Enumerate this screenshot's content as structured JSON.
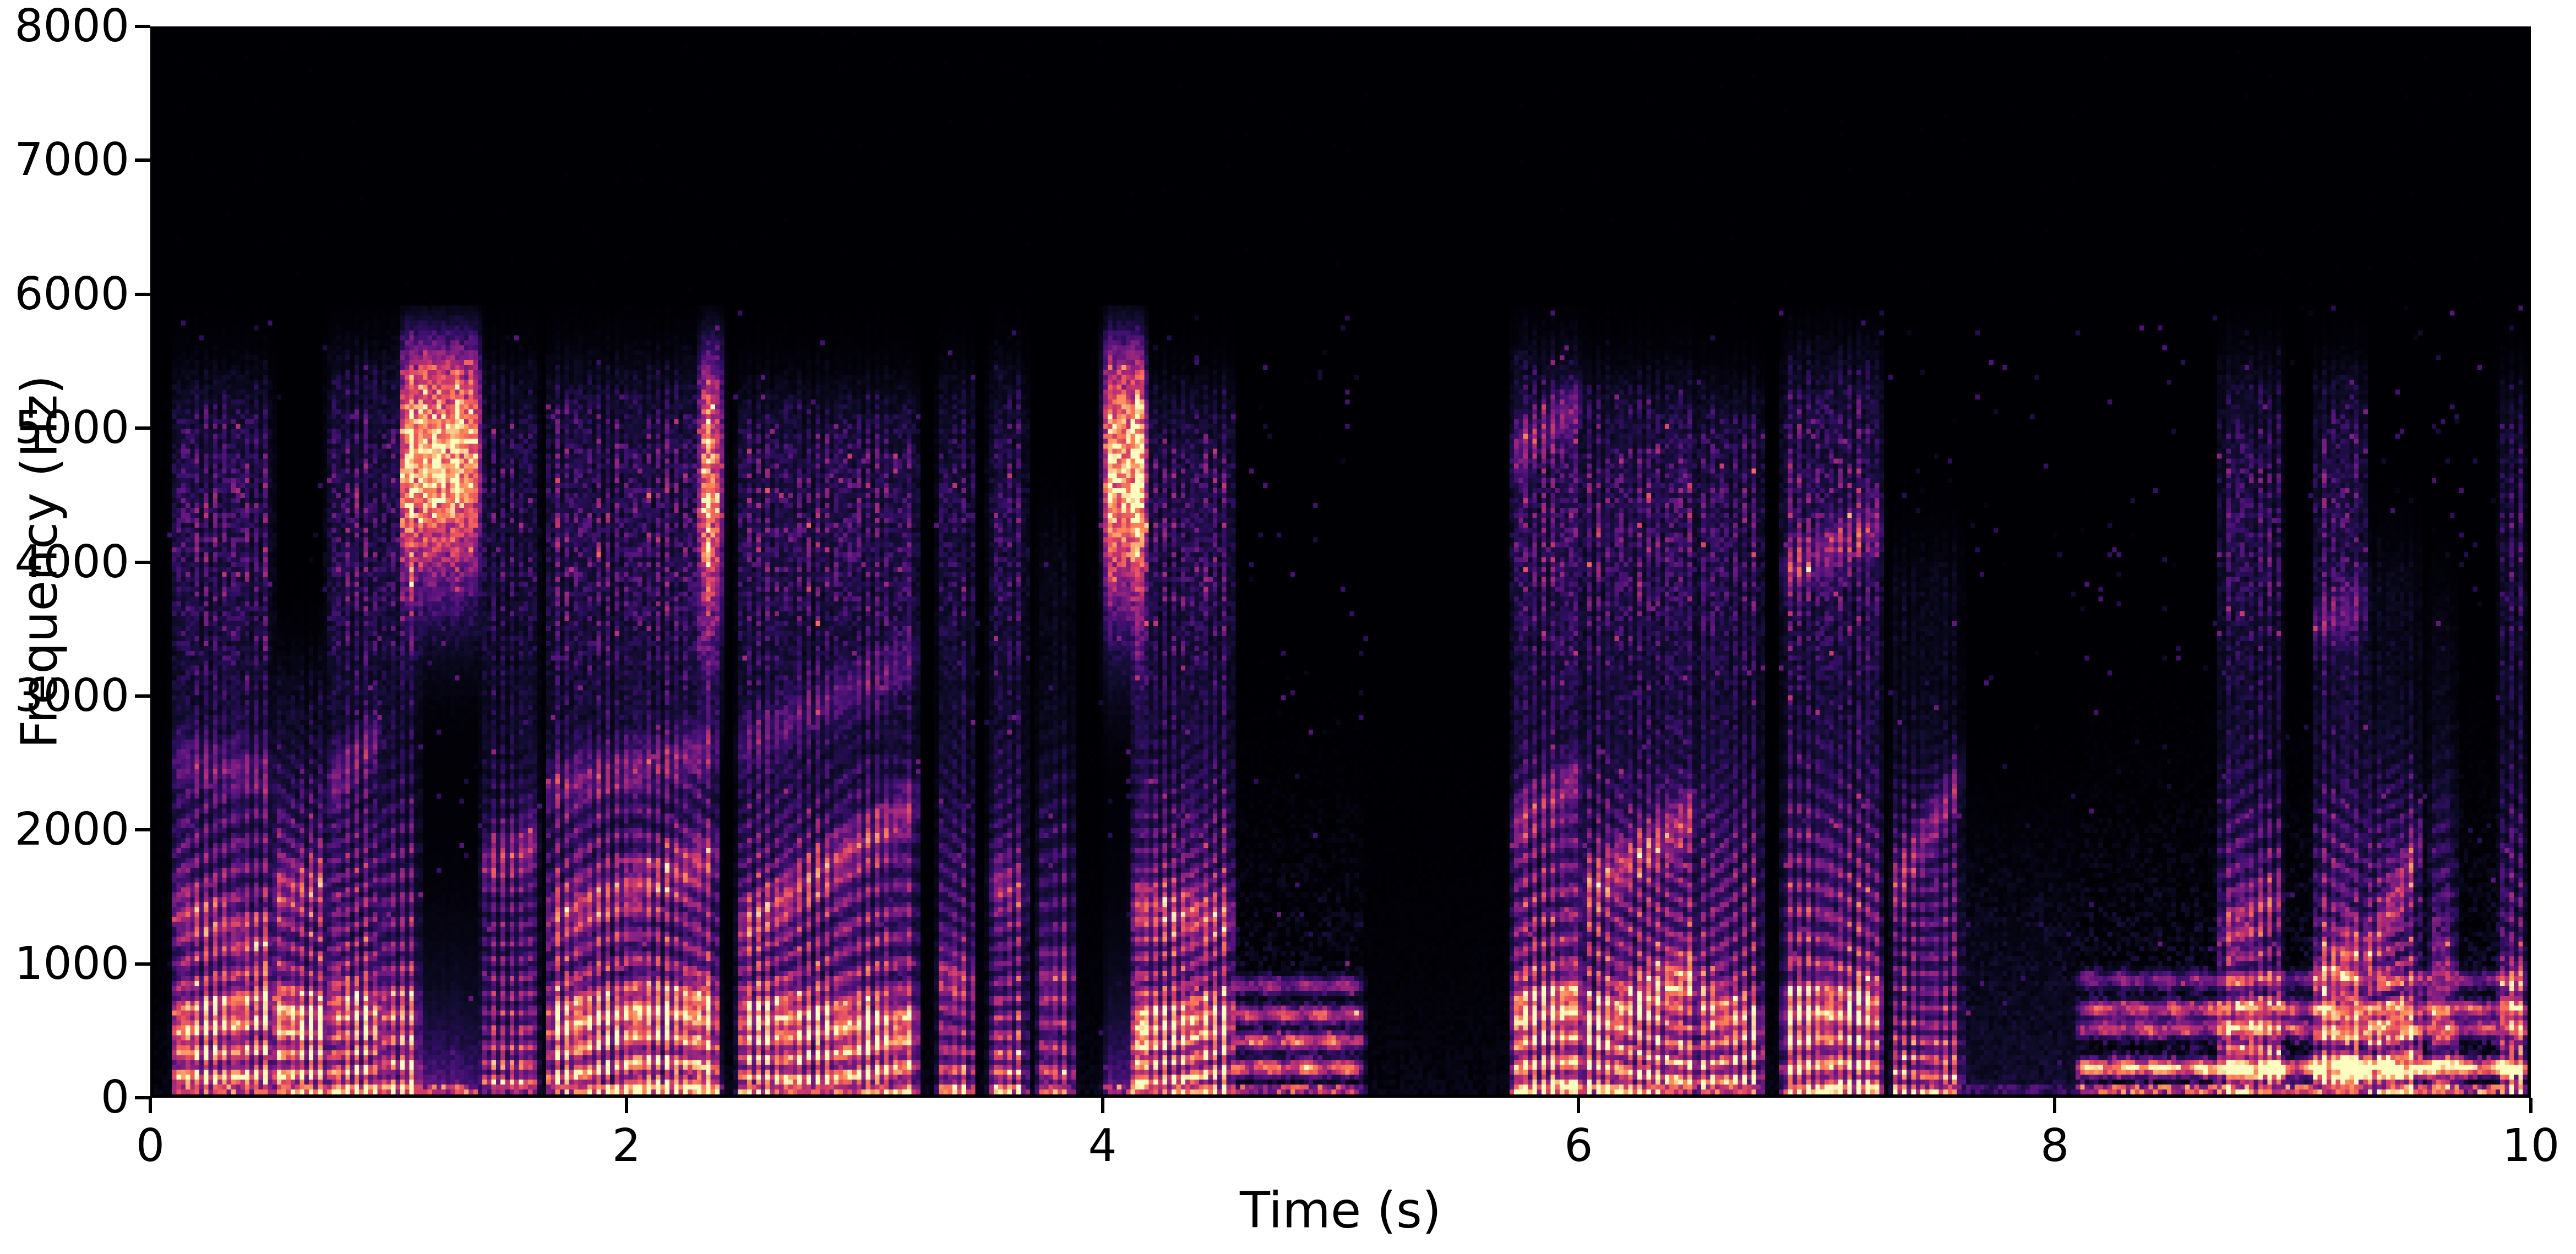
{
  "chart_data": {
    "type": "heatmap",
    "subtype": "spectrogram",
    "xlabel": "Time (s)",
    "ylabel": "Frequency (Hz)",
    "xlim": [
      0,
      10
    ],
    "ylim": [
      0,
      8000
    ],
    "xticks": [
      {
        "value": 0,
        "label": "0"
      },
      {
        "value": 2,
        "label": "2"
      },
      {
        "value": 4,
        "label": "4"
      },
      {
        "value": 6,
        "label": "6"
      },
      {
        "value": 8,
        "label": "8"
      },
      {
        "value": 10,
        "label": "10"
      }
    ],
    "yticks": [
      {
        "value": 0,
        "label": "0"
      },
      {
        "value": 1000,
        "label": "1000"
      },
      {
        "value": 2000,
        "label": "2000"
      },
      {
        "value": 3000,
        "label": "3000"
      },
      {
        "value": 4000,
        "label": "4000"
      },
      {
        "value": 5000,
        "label": "5000"
      },
      {
        "value": 6000,
        "label": "6000"
      },
      {
        "value": 7000,
        "label": "7000"
      },
      {
        "value": 8000,
        "label": "8000"
      }
    ],
    "grid": false,
    "legend": "none",
    "colormap": "magma",
    "colormap_stops": [
      [
        0.0,
        "#000004"
      ],
      [
        0.1,
        "#100c2c"
      ],
      [
        0.2,
        "#2e0e61"
      ],
      [
        0.3,
        "#58147e"
      ],
      [
        0.4,
        "#811f81"
      ],
      [
        0.5,
        "#ab2b79"
      ],
      [
        0.6,
        "#d33e68"
      ],
      [
        0.7,
        "#f1605d"
      ],
      [
        0.8,
        "#fc8757"
      ],
      [
        0.9,
        "#feb57a"
      ],
      [
        1.0,
        "#fcfdbf"
      ]
    ],
    "axis_color": "#000000",
    "plot_background": "#000004",
    "frequency_cutoff_hz": 5900,
    "segments": [
      {
        "t0": 0.08,
        "t1": 0.5,
        "kind": "voiced",
        "fmax": 5600,
        "intensity": 0.92,
        "formants": [
          [
            500,
            700,
            0.9
          ],
          [
            1400,
            1100,
            0.5
          ],
          [
            2500,
            2400,
            0.45
          ]
        ]
      },
      {
        "t0": 0.5,
        "t1": 0.73,
        "kind": "voiced",
        "fmax": 3500,
        "intensity": 1.0,
        "formants": [
          [
            600,
            550,
            1.0
          ],
          [
            1500,
            1600,
            0.5
          ]
        ]
      },
      {
        "t0": 0.73,
        "t1": 0.95,
        "kind": "voiced",
        "fmax": 5800,
        "intensity": 0.9,
        "formants": [
          [
            700,
            600,
            0.9
          ],
          [
            2300,
            2700,
            0.55
          ]
        ]
      },
      {
        "t0": 0.95,
        "t1": 1.12,
        "kind": "voiced",
        "fmax": 5800,
        "intensity": 0.75,
        "formants": [
          [
            600,
            650,
            0.7
          ]
        ]
      },
      {
        "t0": 1.04,
        "t1": 1.38,
        "kind": "fricative",
        "fmax": 5900,
        "intensity": 0.95,
        "fc": 4800,
        "fw": 900
      },
      {
        "t0": 1.38,
        "t1": 1.62,
        "kind": "voiced",
        "fmax": 5700,
        "intensity": 0.7,
        "formants": [
          [
            1700,
            1900,
            0.8
          ]
        ]
      },
      {
        "t0": 1.66,
        "t1": 2.38,
        "kind": "voiced",
        "fmax": 5700,
        "intensity": 0.95,
        "formants": [
          [
            550,
            650,
            1.0
          ],
          [
            1300,
            1800,
            0.6
          ],
          [
            2300,
            2600,
            0.5
          ]
        ]
      },
      {
        "t0": 2.3,
        "t1": 2.4,
        "kind": "fricative",
        "fmax": 5850,
        "intensity": 0.7,
        "fc": 4600,
        "fw": 1100
      },
      {
        "t0": 2.46,
        "t1": 3.22,
        "kind": "voiced",
        "fmax": 5500,
        "intensity": 0.9,
        "formants": [
          [
            600,
            500,
            1.0
          ],
          [
            1200,
            2200,
            0.7
          ],
          [
            2600,
            3300,
            0.4
          ]
        ]
      },
      {
        "t0": 3.3,
        "t1": 3.46,
        "kind": "voiced",
        "fmax": 5600,
        "intensity": 0.7,
        "formants": [
          [
            900,
            800,
            0.7
          ]
        ]
      },
      {
        "t0": 3.52,
        "t1": 3.68,
        "kind": "voiced",
        "fmax": 5700,
        "intensity": 0.75,
        "formants": [
          [
            1600,
            1500,
            0.6
          ]
        ]
      },
      {
        "t0": 3.72,
        "t1": 3.88,
        "kind": "voiced",
        "fmax": 4500,
        "intensity": 0.65,
        "formants": [
          [
            800,
            900,
            0.6
          ]
        ]
      },
      {
        "t0": 4.0,
        "t1": 4.18,
        "kind": "fricative",
        "fmax": 5900,
        "intensity": 1.0,
        "fc": 4700,
        "fw": 1000
      },
      {
        "t0": 4.12,
        "t1": 4.55,
        "kind": "voiced",
        "fmax": 5500,
        "intensity": 0.92,
        "formants": [
          [
            500,
            600,
            1.0
          ],
          [
            1400,
            1300,
            0.7
          ]
        ]
      },
      {
        "t0": 4.55,
        "t1": 5.1,
        "kind": "banded",
        "fmax": 2000,
        "intensity": 0.8,
        "bands": [
          [
            200,
            0.9
          ],
          [
            400,
            0.8
          ],
          [
            600,
            0.75
          ],
          [
            820,
            0.5
          ]
        ]
      },
      {
        "t0": 5.72,
        "t1": 6.02,
        "kind": "voiced",
        "fmax": 5850,
        "intensity": 1.0,
        "formants": [
          [
            600,
            700,
            1.0
          ],
          [
            2000,
            2400,
            0.5
          ],
          [
            4800,
            5200,
            0.5
          ]
        ]
      },
      {
        "t0": 6.02,
        "t1": 6.5,
        "kind": "voiced",
        "fmax": 5600,
        "intensity": 0.95,
        "formants": [
          [
            500,
            900,
            1.0
          ],
          [
            1500,
            2100,
            0.7
          ]
        ]
      },
      {
        "t0": 6.5,
        "t1": 6.78,
        "kind": "voiced",
        "fmax": 5500,
        "intensity": 0.85,
        "formants": [
          [
            700,
            500,
            0.9
          ]
        ]
      },
      {
        "t0": 6.86,
        "t1": 7.28,
        "kind": "voiced",
        "fmax": 5800,
        "intensity": 0.95,
        "formants": [
          [
            600,
            700,
            0.9
          ],
          [
            3900,
            4300,
            0.55
          ]
        ]
      },
      {
        "t0": 7.32,
        "t1": 7.62,
        "kind": "voiced",
        "fmax": 4300,
        "intensity": 0.7,
        "formants": [
          [
            1500,
            2400,
            0.75
          ]
        ]
      },
      {
        "t0": 7.62,
        "t1": 8.1,
        "kind": "quiet",
        "fmax": 2200,
        "intensity": 0.3
      },
      {
        "t0": 8.1,
        "t1": 10.0,
        "kind": "banded",
        "fmax": 2100,
        "intensity": 0.95,
        "bands": [
          [
            200,
            1.0
          ],
          [
            490,
            0.55
          ],
          [
            640,
            0.6
          ],
          [
            860,
            0.35
          ]
        ]
      },
      {
        "t0": 8.7,
        "t1": 8.97,
        "kind": "voiced",
        "fmax": 5750,
        "intensity": 0.75,
        "formants": [
          [
            1200,
            1500,
            0.6
          ]
        ]
      },
      {
        "t0": 9.1,
        "t1": 9.32,
        "kind": "voiced",
        "fmax": 5650,
        "intensity": 0.85,
        "formants": [
          [
            900,
            1100,
            0.8
          ],
          [
            3500,
            3700,
            0.5
          ]
        ]
      },
      {
        "t0": 9.32,
        "t1": 9.55,
        "kind": "voiced",
        "fmax": 4300,
        "intensity": 0.8,
        "formants": [
          [
            1000,
            1900,
            0.85
          ]
        ]
      },
      {
        "t0": 9.58,
        "t1": 9.7,
        "kind": "voiced",
        "fmax": 4000,
        "intensity": 0.55,
        "formants": [
          [
            1100,
            1000,
            0.5
          ]
        ]
      },
      {
        "t0": 9.88,
        "t1": 10.0,
        "kind": "voiced",
        "fmax": 5600,
        "intensity": 0.65,
        "formants": [
          [
            800,
            900,
            0.6
          ]
        ]
      }
    ]
  }
}
